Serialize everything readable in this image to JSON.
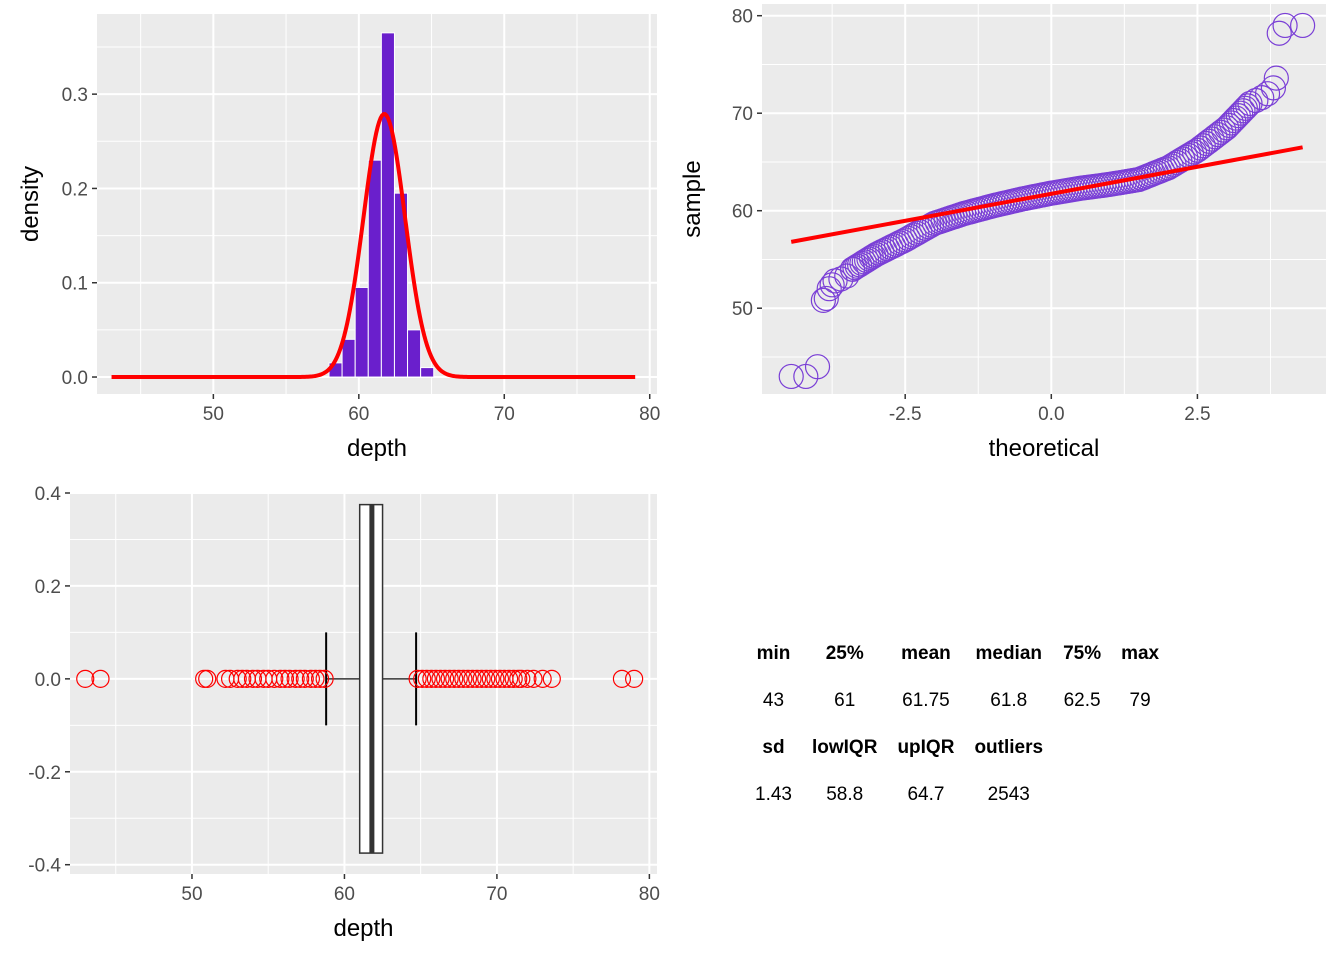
{
  "chart_data": [
    {
      "type": "bar",
      "xlabel": "depth",
      "ylabel": "density",
      "xlim": [
        42,
        80.5
      ],
      "ylim": [
        -0.018,
        0.385
      ],
      "x_ticks": [
        "50",
        "60",
        "70",
        "80"
      ],
      "y_ticks": [
        "0.0",
        "0.1",
        "0.2",
        "0.3"
      ],
      "bar_width": 0.9,
      "bar_color": "#6A1FCC",
      "bars": [
        {
          "x": 58.4,
          "value": 0.015
        },
        {
          "x": 59.3,
          "value": 0.04
        },
        {
          "x": 60.2,
          "value": 0.095
        },
        {
          "x": 61.1,
          "value": 0.23
        },
        {
          "x": 62.0,
          "value": 0.365
        },
        {
          "x": 62.9,
          "value": 0.195
        },
        {
          "x": 63.8,
          "value": 0.05
        },
        {
          "x": 64.7,
          "value": 0.01
        }
      ],
      "density_curve": {
        "type": "line",
        "color": "#FF0000",
        "distribution": "normal",
        "mean": 61.75,
        "sd": 1.43,
        "x_range": [
          43,
          79
        ]
      },
      "grid": true
    },
    {
      "type": "scatter",
      "xlabel": "theoretical",
      "ylabel": "sample",
      "xlim": [
        -4.95,
        4.7
      ],
      "ylim": [
        41.2,
        81.2
      ],
      "x_ticks": [
        "-2.5",
        "0.0",
        "2.5"
      ],
      "y_ticks": [
        "50",
        "60",
        "70",
        "80"
      ],
      "point_color": "#7A3FD6",
      "qq_points": [
        {
          "x": -4.45,
          "y": 43.0
        },
        {
          "x": -4.2,
          "y": 43.0
        },
        {
          "x": -4.0,
          "y": 44.0
        },
        {
          "x": -3.9,
          "y": 50.8
        },
        {
          "x": -3.85,
          "y": 51.0
        },
        {
          "x": -3.8,
          "y": 52.0
        },
        {
          "x": -3.75,
          "y": 52.4
        },
        {
          "x": -3.7,
          "y": 52.8
        },
        {
          "x": -3.6,
          "y": 53.0
        },
        {
          "x": -3.5,
          "y": 53.3
        },
        {
          "x": -3.4,
          "y": 54.0
        },
        {
          "x": 3.4,
          "y": 71.0
        },
        {
          "x": 3.5,
          "y": 71.3
        },
        {
          "x": 3.6,
          "y": 71.6
        },
        {
          "x": 3.7,
          "y": 72.0
        },
        {
          "x": 3.8,
          "y": 72.6
        },
        {
          "x": 3.85,
          "y": 73.6
        },
        {
          "x": 3.9,
          "y": 78.2
        },
        {
          "x": 4.0,
          "y": 79.0
        },
        {
          "x": 4.3,
          "y": 79.0
        }
      ],
      "qq_band": [
        {
          "x": -3.4,
          "y": 54.0
        },
        {
          "x": -3.0,
          "y": 55.5
        },
        {
          "x": -2.5,
          "y": 57.0
        },
        {
          "x": -2.0,
          "y": 58.7
        },
        {
          "x": -1.5,
          "y": 59.7
        },
        {
          "x": -1.0,
          "y": 60.5
        },
        {
          "x": -0.5,
          "y": 61.2
        },
        {
          "x": 0.0,
          "y": 61.8
        },
        {
          "x": 0.5,
          "y": 62.3
        },
        {
          "x": 1.0,
          "y": 62.7
        },
        {
          "x": 1.5,
          "y": 63.2
        },
        {
          "x": 2.0,
          "y": 64.4
        },
        {
          "x": 2.5,
          "y": 66.2
        },
        {
          "x": 3.0,
          "y": 68.5
        },
        {
          "x": 3.4,
          "y": 71.0
        }
      ],
      "qq_line": {
        "color": "#FF0000",
        "x": [
          -4.45,
          4.3
        ],
        "y": [
          56.8,
          66.5
        ]
      },
      "grid": true
    },
    {
      "type": "boxplot",
      "xlabel": "depth",
      "ylabel": "",
      "xlim": [
        42,
        80.5
      ],
      "ylim": [
        -0.42,
        0.4
      ],
      "x_ticks": [
        "50",
        "60",
        "70",
        "80"
      ],
      "y_ticks": [
        "-0.4",
        "-0.2",
        "0.0",
        "0.2",
        "0.4"
      ],
      "box": {
        "q1": 61,
        "median": 61.8,
        "q3": 62.5,
        "whisker_low": 58.8,
        "whisker_high": 64.7,
        "y_low": -0.375,
        "y_high": 0.375,
        "cap_half_height": 0.1
      },
      "outlier_color": "#FF0000",
      "outliers": [
        43,
        44,
        50.8,
        51,
        52.2,
        52.5,
        53,
        53.3,
        53.6,
        54,
        54.3,
        54.7,
        55,
        55.4,
        55.8,
        56.1,
        56.4,
        56.8,
        57.1,
        57.4,
        57.8,
        58.1,
        58.4,
        58.7,
        64.8,
        65.1,
        65.4,
        65.7,
        66,
        66.3,
        66.6,
        66.9,
        67.2,
        67.5,
        67.8,
        68.1,
        68.4,
        68.7,
        69,
        69.3,
        69.6,
        69.9,
        70.2,
        70.5,
        70.8,
        71.1,
        71.4,
        71.6,
        72,
        72.4,
        73,
        73.6,
        78.2,
        79
      ],
      "grid": true
    }
  ],
  "stats_table": {
    "header1": [
      "min",
      "25%",
      "mean",
      "median",
      "75%",
      "max"
    ],
    "row1": [
      "43",
      "61",
      "61.75",
      "61.8",
      "62.5",
      "79"
    ],
    "header2": [
      "sd",
      "lowIQR",
      "upIQR",
      "outliers",
      "",
      ""
    ],
    "row2": [
      "1.43",
      "58.8",
      "64.7",
      "2543",
      "",
      ""
    ]
  }
}
